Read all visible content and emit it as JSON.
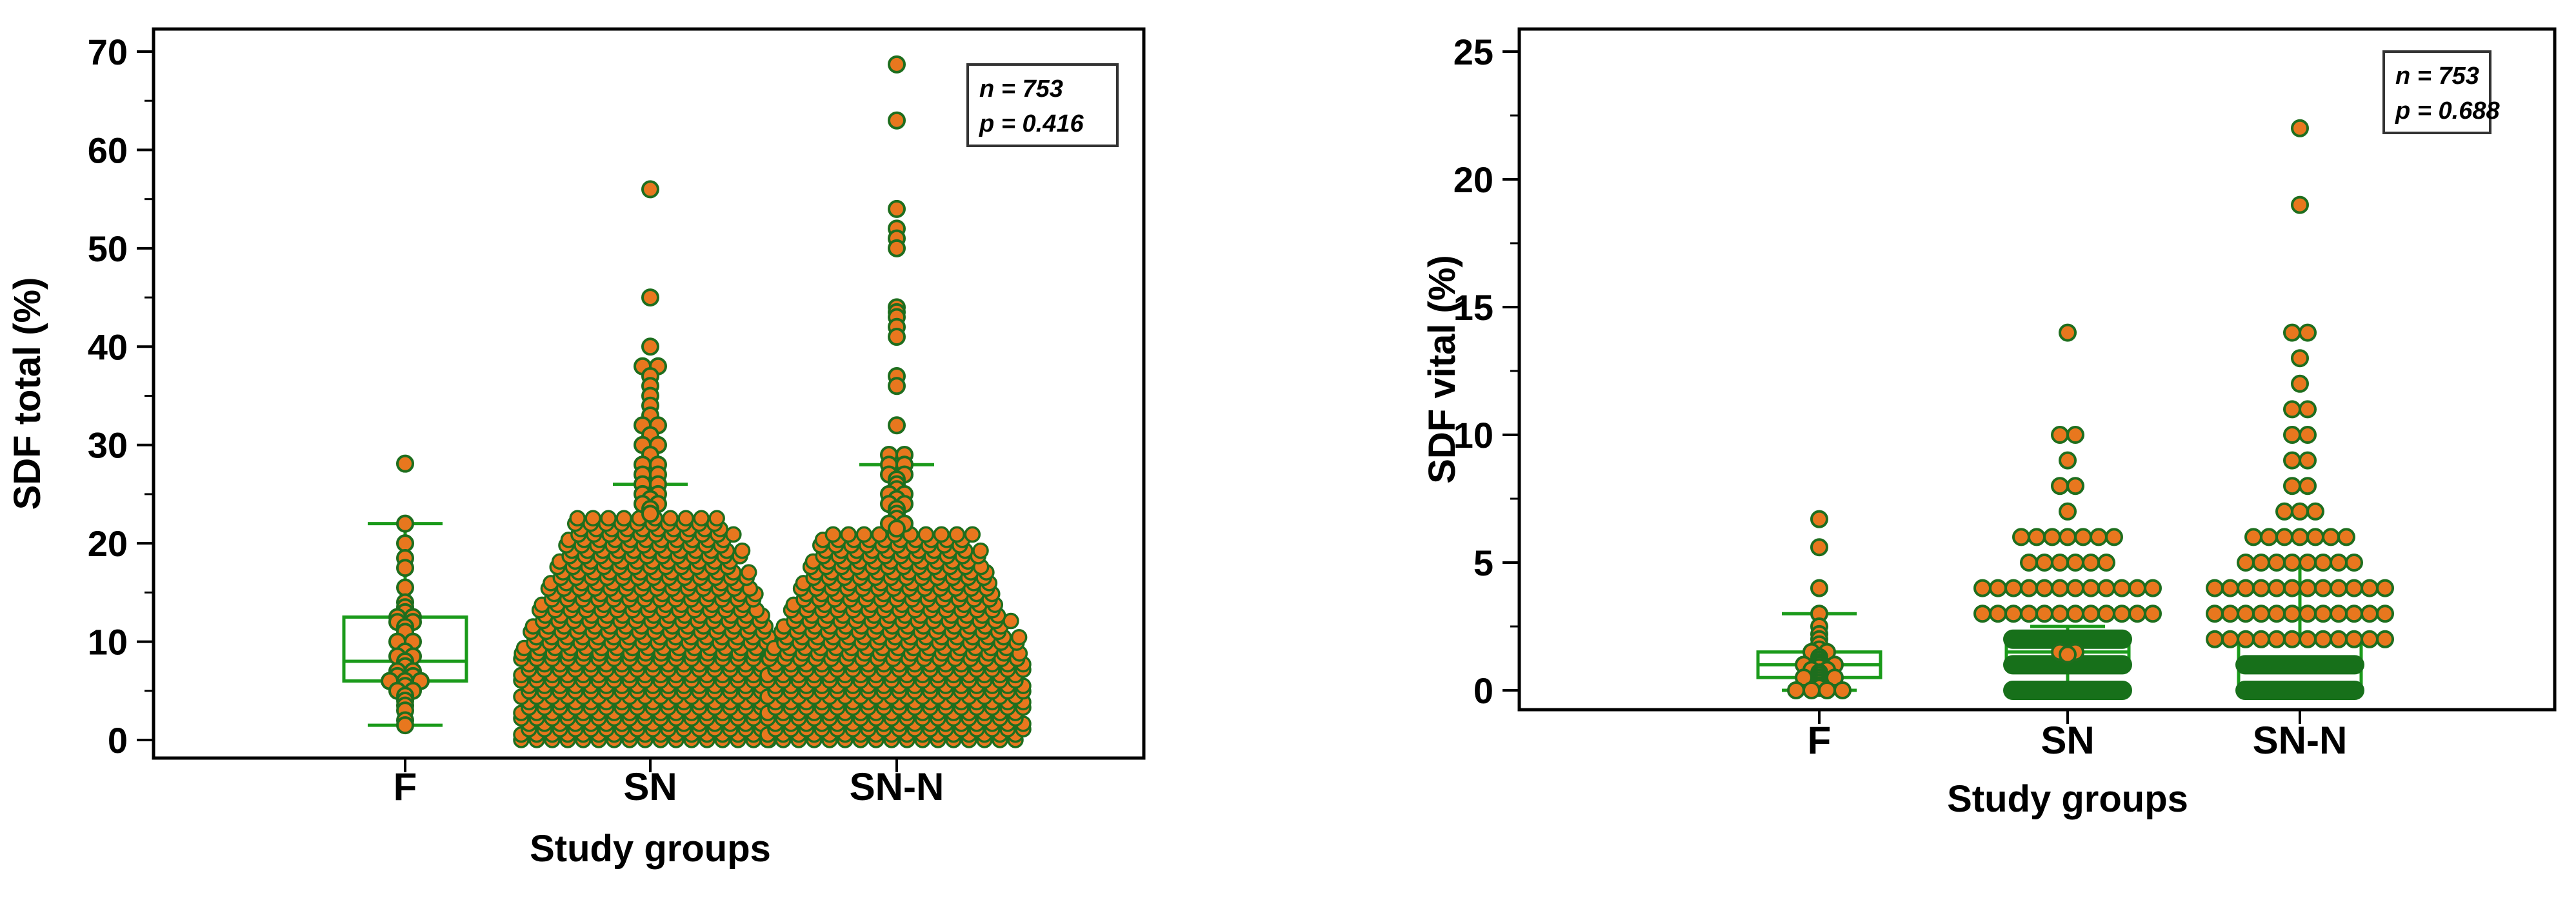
{
  "colors": {
    "box": "#1a9a1a",
    "point_fill": "#e8771e",
    "point_stroke": "#1e6e1e",
    "dense_band": "#17701a",
    "axis": "#000000"
  },
  "chart_data": [
    {
      "type": "box-dot",
      "xlabel": "Study groups",
      "ylabel": "SDF total (%)",
      "ylim": [
        0,
        70
      ],
      "yticks": [
        0,
        10,
        20,
        30,
        40,
        50,
        60,
        70
      ],
      "categories": [
        "F",
        "SN",
        "SN-N"
      ],
      "stats_box": {
        "n": "n = 753",
        "p": "p = 0.416"
      },
      "boxes": [
        {
          "category": "F",
          "whisker_low": 1.5,
          "q1": 6,
          "median": 8,
          "q3": 12.5,
          "whisker_high": 22
        },
        {
          "category": "SN",
          "whisker_low": 0,
          "q1": 6,
          "median": 10,
          "q3": 14,
          "whisker_high": 26
        },
        {
          "category": "SN-N",
          "whisker_low": 0.5,
          "q1": 6,
          "median": 10,
          "q3": 15,
          "whisker_high": 28
        }
      ],
      "points": {
        "F": [
          28.1,
          22,
          20,
          18.5,
          17.5,
          15.5,
          14,
          13.5,
          13,
          12.5,
          12.5,
          12,
          12,
          11.5,
          11,
          10,
          10,
          9,
          8.5,
          8.5,
          8,
          7.5,
          7,
          7,
          6.5,
          6.5,
          6,
          6,
          6,
          5.5,
          5,
          5,
          4.5,
          4,
          3.5,
          3,
          2,
          1.5
        ],
        "SN": [
          56,
          45,
          40,
          38,
          38,
          37,
          36,
          35,
          34,
          33,
          32,
          32,
          31,
          30,
          30,
          29,
          28,
          28,
          27,
          27,
          26,
          26,
          25,
          25,
          24.5,
          24,
          24,
          23.5,
          23
        ],
        "SN-N": [
          68.7,
          63,
          54,
          52,
          51,
          50,
          44,
          43.5,
          43,
          42,
          41,
          37,
          36,
          32,
          29,
          29,
          28,
          28,
          27,
          27,
          26.5,
          26,
          25.5,
          25,
          25,
          24.5,
          24,
          24,
          23.5,
          23,
          22.5,
          22,
          22,
          21.5
        ]
      },
      "dense_range": {
        "SN": [
          0,
          23
        ],
        "SN-N": [
          0,
          21
        ]
      }
    },
    {
      "type": "box-dot",
      "xlabel": "Study groups",
      "ylabel": "SDF vital (%)",
      "ylim": [
        0,
        25
      ],
      "yticks": [
        0,
        5,
        10,
        15,
        20,
        25
      ],
      "categories": [
        "F",
        "SN",
        "SN-N"
      ],
      "stats_box": {
        "n": "n = 753",
        "p": "p = 0.688"
      },
      "boxes": [
        {
          "category": "F",
          "whisker_low": 0,
          "q1": 0.5,
          "median": 1,
          "q3": 1.5,
          "whisker_high": 3
        },
        {
          "category": "SN",
          "whisker_low": 0,
          "q1": 1,
          "median": 1.5,
          "q3": 2,
          "whisker_high": 2.5
        },
        {
          "category": "SN-N",
          "whisker_low": 0,
          "q1": 0,
          "median": 1,
          "q3": 2,
          "whisker_high": 5
        }
      ],
      "points": {
        "F": [
          6.7,
          5.6,
          4,
          3,
          2.5,
          2.2,
          2,
          1.8,
          1.6,
          1.5,
          1.5,
          1.3,
          1.2,
          1.1,
          1,
          1,
          1,
          0.9,
          0.8,
          0.8,
          0.7,
          0.6,
          0.5,
          0.5,
          0.5,
          0.4,
          0.3,
          0.2,
          0.1,
          0,
          0,
          0,
          0
        ],
        "SN": [
          14,
          10,
          10,
          9,
          8,
          8,
          7,
          6,
          6,
          6,
          6,
          6,
          6,
          6,
          5,
          5,
          5,
          5,
          5,
          5,
          4,
          4,
          4,
          4,
          4,
          4,
          4,
          4,
          4,
          4,
          4,
          4,
          3,
          3,
          3,
          3,
          3,
          3,
          3,
          3,
          3,
          3,
          3,
          3,
          1.5,
          1.5,
          1.4
        ],
        "SN-N": [
          22,
          19,
          14,
          14,
          13,
          12,
          11,
          11,
          10,
          10,
          9,
          9,
          8,
          8,
          7,
          7,
          7,
          6,
          6,
          6,
          6,
          6,
          6,
          6,
          5,
          5,
          5,
          5,
          5,
          5,
          5,
          5,
          4,
          4,
          4,
          4,
          4,
          4,
          4,
          4,
          4,
          4,
          4,
          4,
          3,
          3,
          3,
          3,
          3,
          3,
          3,
          3,
          3,
          3,
          3,
          3,
          2,
          2,
          2,
          2,
          2,
          2,
          2,
          2,
          2,
          2,
          2,
          2
        ]
      },
      "dense_bands": {
        "SN": [
          2,
          1,
          0
        ],
        "SN-N": [
          1,
          0
        ]
      }
    }
  ]
}
